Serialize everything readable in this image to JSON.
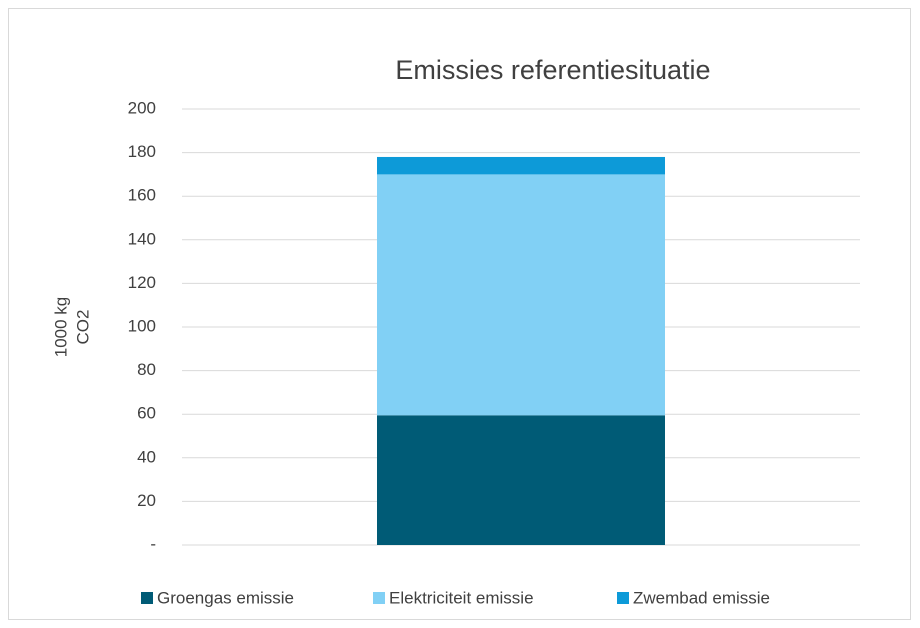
{
  "chart_data": {
    "type": "stacked_bar",
    "title": "Emissies referentiesituatie",
    "y_label": [
      "1000 kg",
      "CO2"
    ],
    "categories": [
      null
    ],
    "series": [
      {
        "name": "Groengas emissie",
        "color": "#005b76",
        "values": [
          59.5
        ]
      },
      {
        "name": "Elektriciteit emissie",
        "color": "#81d0f5",
        "values": [
          110.5
        ]
      },
      {
        "name": "Zwembad emissie",
        "color": "#0d9ad8",
        "values": [
          8
        ]
      }
    ],
    "ylim": [
      0,
      200
    ],
    "yticks": [
      {
        "value": 0,
        "label": "-"
      },
      20,
      40,
      60,
      80,
      100,
      120,
      140,
      160,
      180,
      200
    ],
    "grid": true,
    "legend": "bottom"
  }
}
